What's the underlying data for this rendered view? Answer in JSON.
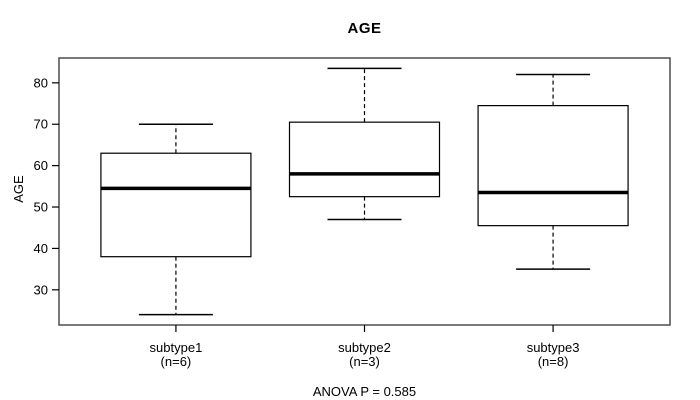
{
  "chart_data": {
    "type": "boxplot",
    "title": "AGE",
    "ylabel": "AGE",
    "xlabel": "",
    "annotation": "ANOVA P = 0.585",
    "ylim": [
      21.5,
      86
    ],
    "yticks": [
      30,
      40,
      50,
      60,
      70,
      80
    ],
    "grid": false,
    "legend_position": "none",
    "categories": [
      {
        "label": "subtype1",
        "sublabel": "(n=6)"
      },
      {
        "label": "subtype2",
        "sublabel": "(n=3)"
      },
      {
        "label": "subtype3",
        "sublabel": "(n=8)"
      }
    ],
    "series": [
      {
        "name": "subtype1",
        "n": 6,
        "whisker_low": 24,
        "q1": 38,
        "median": 54.5,
        "q3": 63,
        "whisker_high": 70
      },
      {
        "name": "subtype2",
        "n": 3,
        "whisker_low": 47,
        "q1": 52.5,
        "median": 58,
        "q3": 70.5,
        "whisker_high": 83.5
      },
      {
        "name": "subtype3",
        "n": 8,
        "whisker_low": 35,
        "q1": 45.5,
        "median": 53.5,
        "q3": 74.5,
        "whisker_high": 82
      }
    ],
    "colors": {
      "line": "#000000",
      "median": "#000000",
      "frame": "#4d4d4d",
      "text": "#000000",
      "background": "#ffffff"
    }
  }
}
